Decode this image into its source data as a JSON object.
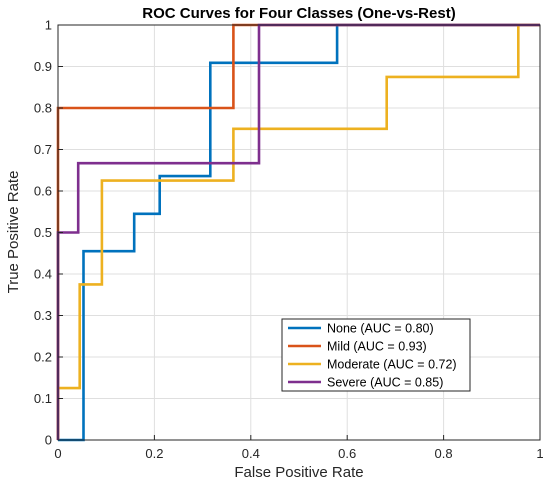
{
  "chart_data": {
    "type": "line",
    "title": "ROC Curves for Four Classes (One-vs-Rest)",
    "xlabel": "False Positive Rate",
    "ylabel": "True Positive Rate",
    "xlim": [
      0,
      1
    ],
    "ylim": [
      0,
      1
    ],
    "grid": true,
    "legend_position": "bottom-right",
    "x_ticks": [
      "0",
      "0.2",
      "0.4",
      "0.6",
      "0.8",
      "1"
    ],
    "y_ticks": [
      "0",
      "0.1",
      "0.2",
      "0.3",
      "0.4",
      "0.5",
      "0.6",
      "0.7",
      "0.8",
      "0.9",
      "1"
    ],
    "series": [
      {
        "name": "None (AUC = 0.80)",
        "color": "#0072BD",
        "x": [
          0,
          0.053,
          0.053,
          0.158,
          0.158,
          0.211,
          0.211,
          0.316,
          0.316,
          0.579,
          0.579,
          1
        ],
        "y": [
          0,
          0,
          0.455,
          0.455,
          0.545,
          0.545,
          0.636,
          0.636,
          0.909,
          0.909,
          1,
          1
        ]
      },
      {
        "name": "Mild (AUC = 0.93)",
        "color": "#D95319",
        "x": [
          0,
          0,
          0.364,
          0.364,
          1
        ],
        "y": [
          0,
          0.8,
          0.8,
          1,
          1
        ]
      },
      {
        "name": "Moderate (AUC = 0.72)",
        "color": "#EDB120",
        "x": [
          0,
          0,
          0.045,
          0.045,
          0.091,
          0.091,
          0.364,
          0.364,
          0.682,
          0.682,
          0.955,
          0.955,
          1
        ],
        "y": [
          0,
          0.125,
          0.125,
          0.375,
          0.375,
          0.625,
          0.625,
          0.75,
          0.75,
          0.875,
          0.875,
          1,
          1
        ]
      },
      {
        "name": "Severe (AUC = 0.85)",
        "color": "#7E2F8E",
        "x": [
          0,
          0,
          0.042,
          0.042,
          0.417,
          0.417,
          1
        ],
        "y": [
          0,
          0.5,
          0.5,
          0.667,
          0.667,
          1,
          1
        ]
      }
    ]
  }
}
